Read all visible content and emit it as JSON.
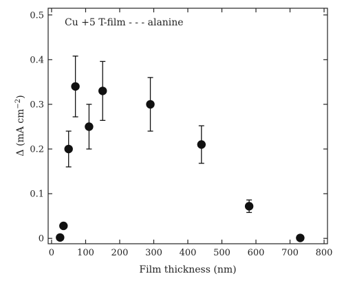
{
  "chart_data": {
    "type": "scatter",
    "title": "",
    "annotation": "Cu +5 T-film - - - alanine",
    "xlabel": "Film thickness (nm)",
    "ylabel_main": "Δ (mA cm",
    "ylabel_sup": "−2",
    "ylabel_close": ")",
    "xlim": [
      -10,
      810
    ],
    "ylim": [
      -0.012,
      0.515
    ],
    "xticks": [
      0,
      100,
      200,
      300,
      400,
      500,
      600,
      700,
      800
    ],
    "xtick_labels": [
      "0",
      "100",
      "200",
      "300",
      "400",
      "500",
      "600",
      "700",
      "800"
    ],
    "yticks": [
      0,
      0.1,
      0.2,
      0.3,
      0.4,
      0.5
    ],
    "ytick_labels": [
      "0",
      "0.1",
      "0.2",
      "0.3",
      "0.4",
      "0.5"
    ],
    "grid": false,
    "points": [
      {
        "x": 25,
        "y": 0.002,
        "err": null
      },
      {
        "x": 35,
        "y": 0.028,
        "err": null
      },
      {
        "x": 50,
        "y": 0.2,
        "err": [
          0.16,
          0.24
        ]
      },
      {
        "x": 70,
        "y": 0.34,
        "err": [
          0.272,
          0.408
        ]
      },
      {
        "x": 110,
        "y": 0.25,
        "err": [
          0.2,
          0.3
        ]
      },
      {
        "x": 150,
        "y": 0.33,
        "err": [
          0.264,
          0.396
        ]
      },
      {
        "x": 290,
        "y": 0.3,
        "err": [
          0.24,
          0.36
        ]
      },
      {
        "x": 440,
        "y": 0.21,
        "err": [
          0.168,
          0.252
        ]
      },
      {
        "x": 580,
        "y": 0.072,
        "err": [
          0.058,
          0.086
        ]
      },
      {
        "x": 730,
        "y": 0.001,
        "err": null
      }
    ],
    "marker_color": "#111111"
  }
}
